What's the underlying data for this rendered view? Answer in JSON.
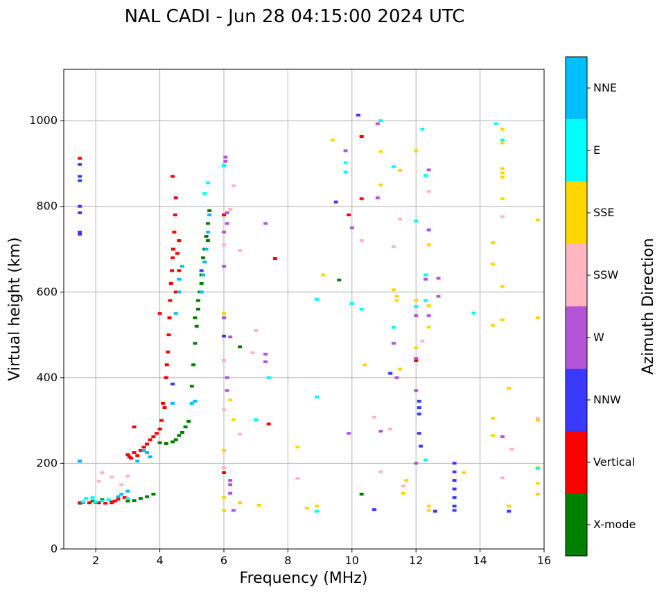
{
  "chart_data": {
    "type": "scatter",
    "title": "NAL CADI - Jun 28 04:15:00 2024 UTC",
    "xlabel": "Frequency (MHz)",
    "ylabel": "Virtual height (km)",
    "xlim": [
      1,
      16
    ],
    "ylim": [
      0,
      1120
    ],
    "xticks": [
      2,
      4,
      6,
      8,
      10,
      12,
      14,
      16
    ],
    "yticks": [
      0,
      200,
      400,
      600,
      800,
      1000
    ],
    "grid": true,
    "colorbar": {
      "title": "Azimuth Direction",
      "categories": [
        {
          "name": "X-mode",
          "color": "#008000"
        },
        {
          "name": "Vertical",
          "color": "#ff0000"
        },
        {
          "name": "NNW",
          "color": "#3a3aff"
        },
        {
          "name": "W",
          "color": "#b455d8"
        },
        {
          "name": "SSW",
          "color": "#ffb6c1"
        },
        {
          "name": "SSE",
          "color": "#ffd700"
        },
        {
          "name": "E",
          "color": "#00ffff"
        },
        {
          "name": "NNE",
          "color": "#00bfff"
        }
      ]
    },
    "series": [
      {
        "name": "X-mode",
        "points": [
          [
            3.0,
            112
          ],
          [
            3.2,
            113
          ],
          [
            3.4,
            118
          ],
          [
            3.6,
            122
          ],
          [
            3.8,
            128
          ],
          [
            1.9,
            112
          ],
          [
            2.2,
            115
          ],
          [
            2.5,
            108
          ],
          [
            4.0,
            248
          ],
          [
            4.2,
            246
          ],
          [
            4.4,
            250
          ],
          [
            4.5,
            255
          ],
          [
            4.6,
            265
          ],
          [
            4.7,
            272
          ],
          [
            4.8,
            285
          ],
          [
            4.9,
            298
          ],
          [
            5.0,
            380
          ],
          [
            5.05,
            430
          ],
          [
            5.1,
            480
          ],
          [
            5.15,
            520
          ],
          [
            5.2,
            560
          ],
          [
            5.25,
            600
          ],
          [
            5.3,
            640
          ],
          [
            5.35,
            680
          ],
          [
            5.4,
            700
          ],
          [
            5.45,
            730
          ],
          [
            5.5,
            760
          ],
          [
            5.55,
            790
          ],
          [
            5.5,
            720
          ],
          [
            5.4,
            670
          ],
          [
            5.3,
            620
          ],
          [
            5.2,
            580
          ],
          [
            5.1,
            540
          ],
          [
            6.5,
            472
          ],
          [
            9.6,
            628
          ],
          [
            10.3,
            128
          ],
          [
            1.5,
            107
          ]
        ]
      },
      {
        "name": "Vertical",
        "points": [
          [
            1.5,
            108
          ],
          [
            1.6,
            109
          ],
          [
            1.8,
            108
          ],
          [
            2.0,
            109
          ],
          [
            2.1,
            108
          ],
          [
            2.3,
            107
          ],
          [
            2.5,
            110
          ],
          [
            2.6,
            112
          ],
          [
            2.7,
            116
          ],
          [
            2.9,
            120
          ],
          [
            3.0,
            220
          ],
          [
            3.05,
            215
          ],
          [
            3.1,
            212
          ],
          [
            3.2,
            225
          ],
          [
            3.3,
            218
          ],
          [
            3.4,
            230
          ],
          [
            3.5,
            238
          ],
          [
            3.6,
            245
          ],
          [
            3.7,
            255
          ],
          [
            3.8,
            262
          ],
          [
            3.9,
            270
          ],
          [
            4.0,
            280
          ],
          [
            4.05,
            300
          ],
          [
            4.1,
            340
          ],
          [
            4.15,
            330
          ],
          [
            4.2,
            400
          ],
          [
            4.22,
            430
          ],
          [
            4.25,
            460
          ],
          [
            4.28,
            500
          ],
          [
            4.3,
            540
          ],
          [
            4.32,
            580
          ],
          [
            4.35,
            620
          ],
          [
            4.38,
            650
          ],
          [
            4.4,
            680
          ],
          [
            4.42,
            700
          ],
          [
            4.45,
            740
          ],
          [
            4.48,
            780
          ],
          [
            4.5,
            820
          ],
          [
            4.4,
            870
          ],
          [
            4.55,
            690
          ],
          [
            4.6,
            650
          ],
          [
            4.6,
            720
          ],
          [
            4.0,
            550
          ],
          [
            1.5,
            912
          ],
          [
            3.2,
            285
          ],
          [
            4.5,
            600
          ],
          [
            10.3,
            818
          ],
          [
            10.3,
            963
          ],
          [
            7.4,
            292
          ],
          [
            7.6,
            678
          ],
          [
            9.9,
            780
          ],
          [
            12.0,
            440
          ],
          [
            6.0,
            780
          ],
          [
            6.0,
            178
          ],
          [
            6.0,
            440
          ]
        ]
      },
      {
        "name": "NNW",
        "points": [
          [
            1.5,
            735
          ],
          [
            1.5,
            740
          ],
          [
            1.5,
            785
          ],
          [
            1.5,
            800
          ],
          [
            1.5,
            860
          ],
          [
            1.5,
            870
          ],
          [
            1.5,
            898
          ],
          [
            1.5,
            205
          ],
          [
            4.4,
            385
          ],
          [
            6.0,
            497
          ],
          [
            11.2,
            410
          ],
          [
            12.1,
            330
          ],
          [
            12.1,
            345
          ],
          [
            12.1,
            315
          ],
          [
            12.15,
            240
          ],
          [
            12.1,
            270
          ],
          [
            12.4,
            745
          ],
          [
            12.6,
            88
          ],
          [
            13.2,
            200
          ],
          [
            13.2,
            180
          ],
          [
            13.2,
            160
          ],
          [
            13.2,
            140
          ],
          [
            13.2,
            120
          ],
          [
            13.2,
            100
          ],
          [
            13.2,
            90
          ],
          [
            14.9,
            88
          ],
          [
            10.7,
            92
          ],
          [
            10.2,
            1013
          ],
          [
            9.5,
            810
          ],
          [
            5.3,
            650
          ]
        ]
      },
      {
        "name": "W",
        "points": [
          [
            6.05,
            915
          ],
          [
            6.05,
            905
          ],
          [
            6.1,
            785
          ],
          [
            6.1,
            400
          ],
          [
            6.1,
            370
          ],
          [
            6.2,
            495
          ],
          [
            6.0,
            540
          ],
          [
            6.0,
            660
          ],
          [
            6.0,
            740
          ],
          [
            6.1,
            760
          ],
          [
            6.2,
            160
          ],
          [
            6.2,
            150
          ],
          [
            6.2,
            130
          ],
          [
            6.3,
            90
          ],
          [
            7.3,
            760
          ],
          [
            7.3,
            455
          ],
          [
            7.3,
            437
          ],
          [
            9.8,
            930
          ],
          [
            10.0,
            750
          ],
          [
            10.8,
            993
          ],
          [
            10.8,
            820
          ],
          [
            10.9,
            275
          ],
          [
            11.3,
            480
          ],
          [
            11.4,
            400
          ],
          [
            12.0,
            545
          ],
          [
            12.0,
            445
          ],
          [
            12.0,
            200
          ],
          [
            12.0,
            370
          ],
          [
            12.4,
            885
          ],
          [
            12.4,
            545
          ],
          [
            12.7,
            632
          ],
          [
            12.7,
            590
          ],
          [
            14.7,
            262
          ],
          [
            12.4,
            745
          ],
          [
            12.3,
            630
          ],
          [
            9.9,
            270
          ]
        ]
      },
      {
        "name": "SSW",
        "points": [
          [
            6.3,
            848
          ],
          [
            6.2,
            793
          ],
          [
            6.5,
            697
          ],
          [
            6.5,
            268
          ],
          [
            6.9,
            458
          ],
          [
            7.0,
            510
          ],
          [
            8.3,
            165
          ],
          [
            10.3,
            720
          ],
          [
            10.9,
            180
          ],
          [
            11.2,
            280
          ],
          [
            11.3,
            706
          ],
          [
            11.5,
            770
          ],
          [
            11.6,
            147
          ],
          [
            12.2,
            485
          ],
          [
            12.4,
            835
          ],
          [
            14.7,
            776
          ],
          [
            14.7,
            166
          ],
          [
            15.0,
            233
          ],
          [
            15.8,
            305
          ],
          [
            6.0,
            710
          ],
          [
            6.0,
            190
          ],
          [
            6.0,
            325
          ],
          [
            6.0,
            440
          ],
          [
            2.1,
            158
          ],
          [
            2.2,
            178
          ],
          [
            2.5,
            168
          ],
          [
            2.8,
            150
          ],
          [
            3.0,
            170
          ],
          [
            10.7,
            308
          ]
        ]
      },
      {
        "name": "SSE",
        "points": [
          [
            6.2,
            348
          ],
          [
            6.3,
            302
          ],
          [
            6.0,
            90
          ],
          [
            6.5,
            108
          ],
          [
            7.1,
            102
          ],
          [
            8.3,
            238
          ],
          [
            8.6,
            95
          ],
          [
            8.9,
            100
          ],
          [
            9.1,
            640
          ],
          [
            9.4,
            955
          ],
          [
            10.4,
            430
          ],
          [
            10.9,
            928
          ],
          [
            10.9,
            850
          ],
          [
            11.3,
            605
          ],
          [
            11.4,
            590
          ],
          [
            11.4,
            580
          ],
          [
            11.5,
            884
          ],
          [
            11.5,
            420
          ],
          [
            11.6,
            130
          ],
          [
            11.7,
            160
          ],
          [
            12.0,
            930
          ],
          [
            12.0,
            580
          ],
          [
            12.0,
            470
          ],
          [
            12.4,
            710
          ],
          [
            12.4,
            568
          ],
          [
            12.4,
            518
          ],
          [
            12.4,
            100
          ],
          [
            12.4,
            90
          ],
          [
            13.5,
            178
          ],
          [
            14.4,
            715
          ],
          [
            14.4,
            665
          ],
          [
            14.4,
            522
          ],
          [
            14.4,
            305
          ],
          [
            14.4,
            265
          ],
          [
            14.7,
            980
          ],
          [
            14.7,
            948
          ],
          [
            14.7,
            888
          ],
          [
            14.7,
            878
          ],
          [
            14.7,
            868
          ],
          [
            14.7,
            818
          ],
          [
            14.7,
            613
          ],
          [
            14.7,
            535
          ],
          [
            14.9,
            375
          ],
          [
            14.9,
            100
          ],
          [
            15.8,
            768
          ],
          [
            15.8,
            540
          ],
          [
            15.8,
            190
          ],
          [
            15.8,
            153
          ],
          [
            15.8,
            128
          ],
          [
            15.8,
            300
          ],
          [
            6.0,
            550
          ],
          [
            6.0,
            120
          ],
          [
            6.0,
            230
          ]
        ]
      },
      {
        "name": "E",
        "points": [
          [
            1.6,
            110
          ],
          [
            1.7,
            118
          ],
          [
            1.9,
            120
          ],
          [
            2.0,
            110
          ],
          [
            2.2,
            112
          ],
          [
            2.4,
            115
          ],
          [
            3.0,
            118
          ],
          [
            6.0,
            895
          ],
          [
            7.4,
            400
          ],
          [
            7.0,
            302
          ],
          [
            8.9,
            583
          ],
          [
            8.9,
            355
          ],
          [
            8.9,
            88
          ],
          [
            9.8,
            880
          ],
          [
            9.8,
            902
          ],
          [
            10.0,
            573
          ],
          [
            10.3,
            560
          ],
          [
            10.9,
            1000
          ],
          [
            11.3,
            893
          ],
          [
            11.3,
            518
          ],
          [
            12.0,
            766
          ],
          [
            12.0,
            566
          ],
          [
            12.2,
            980
          ],
          [
            12.3,
            872
          ],
          [
            12.3,
            640
          ],
          [
            12.3,
            580
          ],
          [
            12.3,
            208
          ],
          [
            13.8,
            551
          ],
          [
            14.5,
            993
          ],
          [
            14.7,
            955
          ],
          [
            15.8,
            188
          ],
          [
            5.5,
            855
          ],
          [
            5.4,
            830
          ]
        ]
      },
      {
        "name": "NNE",
        "points": [
          [
            2.7,
            122
          ],
          [
            2.8,
            128
          ],
          [
            3.0,
            135
          ],
          [
            3.5,
            230
          ],
          [
            3.6,
            225
          ],
          [
            4.4,
            340
          ],
          [
            4.5,
            550
          ],
          [
            4.6,
            600
          ],
          [
            4.6,
            630
          ],
          [
            4.7,
            660
          ],
          [
            5.0,
            340
          ],
          [
            5.1,
            345
          ],
          [
            5.3,
            600
          ],
          [
            5.35,
            640
          ],
          [
            5.4,
            670
          ],
          [
            5.45,
            700
          ],
          [
            5.5,
            740
          ],
          [
            5.55,
            780
          ],
          [
            1.5,
            205
          ],
          [
            3.3,
            205
          ],
          [
            3.7,
            215
          ]
        ]
      }
    ]
  }
}
